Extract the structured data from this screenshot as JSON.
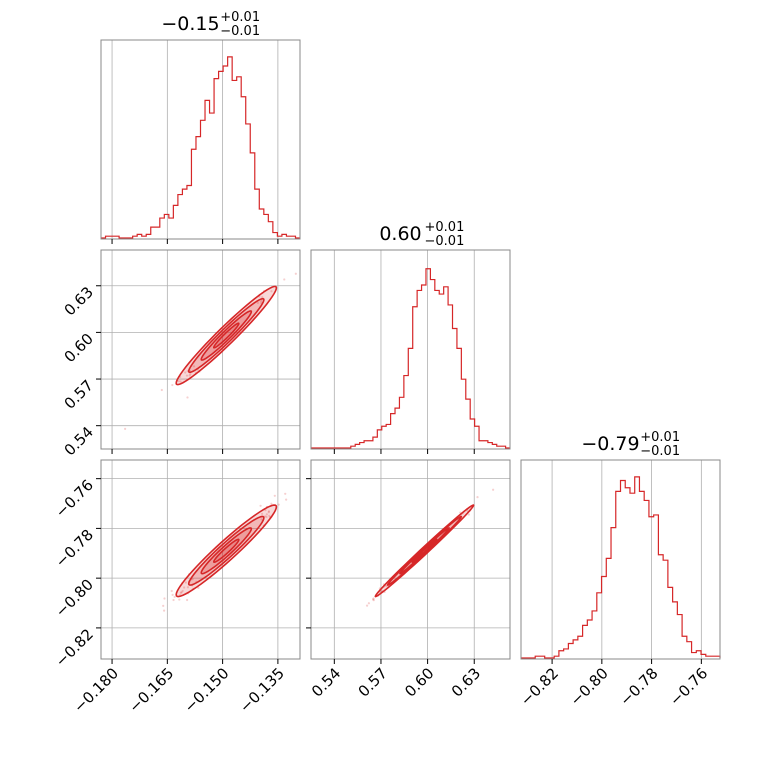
{
  "chart_data": {
    "type": "corner",
    "color": "#d62728",
    "grid": true,
    "parameters": [
      {
        "title_value": "−0.15",
        "title_plus": "+0.01",
        "title_minus": "−0.01",
        "range": [
          -0.183,
          -0.129
        ]
      },
      {
        "title_value": "0.60",
        "title_plus": "+0.01",
        "title_minus": "−0.01",
        "range": [
          0.525,
          0.653
        ]
      },
      {
        "title_value": "−0.79",
        "title_plus": "+0.01",
        "title_minus": "−0.01",
        "range": [
          -0.8325,
          -0.7525
        ]
      }
    ],
    "ticks": {
      "p0": [
        {
          "value": -0.18,
          "label": "−0.180"
        },
        {
          "value": -0.165,
          "label": "−0.165"
        },
        {
          "value": -0.15,
          "label": "−0.150"
        },
        {
          "value": -0.135,
          "label": "−0.135"
        }
      ],
      "p1": [
        {
          "value": 0.54,
          "label": "0.54"
        },
        {
          "value": 0.57,
          "label": "0.57"
        },
        {
          "value": 0.6,
          "label": "0.60"
        },
        {
          "value": 0.63,
          "label": "0.63"
        }
      ],
      "p2": [
        {
          "value": -0.82,
          "label": "−0.82"
        },
        {
          "value": -0.8,
          "label": "−0.80"
        },
        {
          "value": -0.78,
          "label": "−0.78"
        },
        {
          "value": -0.76,
          "label": "−0.76"
        }
      ]
    },
    "histograms": [
      {
        "parameter": 0,
        "normalized_counts": [
          0,
          0.01,
          0.01,
          0.01,
          0,
          0,
          0,
          0.01,
          0.02,
          0.01,
          0.02,
          0.06,
          0.06,
          0.11,
          0.13,
          0.11,
          0.18,
          0.24,
          0.27,
          0.29,
          0.49,
          0.56,
          0.65,
          0.76,
          0.69,
          0.88,
          0.92,
          0.95,
          1.0,
          0.87,
          0.89,
          0.78,
          0.63,
          0.47,
          0.27,
          0.16,
          0.13,
          0.09,
          0.03,
          0.01,
          0.02,
          0.01,
          0.01,
          0.0
        ]
      },
      {
        "parameter": 1,
        "normalized_counts": [
          0,
          0,
          0,
          0,
          0,
          0,
          0,
          0,
          0,
          0.01,
          0.02,
          0.03,
          0.04,
          0.04,
          0.06,
          0.1,
          0.12,
          0.13,
          0.19,
          0.22,
          0.28,
          0.4,
          0.55,
          0.78,
          0.87,
          0.9,
          0.99,
          0.93,
          0.87,
          0.85,
          0.89,
          0.79,
          0.66,
          0.55,
          0.38,
          0.27,
          0.16,
          0.12,
          0.04,
          0.04,
          0.03,
          0.02,
          0.01,
          0.01,
          0
        ]
      },
      {
        "parameter": 2,
        "normalized_counts": [
          0,
          0,
          0,
          0.01,
          0.01,
          0,
          0,
          0.01,
          0.04,
          0.05,
          0.08,
          0.1,
          0.12,
          0.18,
          0.21,
          0.26,
          0.36,
          0.45,
          0.55,
          0.72,
          0.92,
          0.98,
          0.94,
          0.91,
          1.0,
          0.92,
          0.87,
          0.78,
          0.79,
          0.57,
          0.54,
          0.39,
          0.31,
          0.24,
          0.12,
          0.09,
          0.03,
          0.04,
          0.02,
          0.01,
          0.01,
          0.01
        ]
      }
    ],
    "joint_2d": [
      {
        "x_param": 0,
        "y_param": 1,
        "mean": [
          -0.149,
          0.598
        ],
        "std": [
          0.0068,
          0.0158
        ],
        "correlation": 0.97
      },
      {
        "x_param": 0,
        "y_param": 2,
        "mean": [
          -0.149,
          -0.789
        ],
        "std": [
          0.0068,
          0.0092
        ],
        "correlation": 0.96
      },
      {
        "x_param": 1,
        "y_param": 2,
        "mean": [
          0.598,
          -0.789
        ],
        "std": [
          0.0158,
          0.0092
        ],
        "correlation": 0.995
      }
    ]
  }
}
